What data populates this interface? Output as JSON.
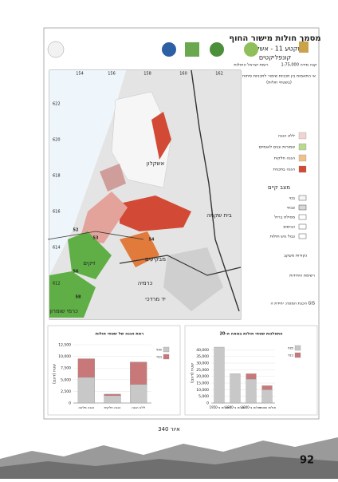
{
  "header": {
    "title": "מסמך חולות מישור החוף",
    "subtitle": "מקטע 11 - אשקלון",
    "topic": "קונפליקטים",
    "scale": "קנה מידה 1:75,000",
    "publisher": "רשות ישראל החולות"
  },
  "map": {
    "grid_x_labels": [
      "154",
      "156",
      "158",
      "160",
      "162"
    ],
    "grid_y_labels": [
      "622",
      "620",
      "618",
      "616",
      "614",
      "612"
    ],
    "places": [
      "אשקלון",
      "בית שקמה",
      "מבקיעים",
      "זיקים",
      "כרמיה",
      "יד מרדכי",
      "כרמי שומרון"
    ],
    "site_numbers": [
      "52",
      "53",
      "54",
      "56",
      "58"
    ]
  },
  "legend": {
    "title": "אי התאמות בין תכניות שימור לתכניות פיתוח",
    "note": "(בשטחי חולות)",
    "items": [
      "ללא הגנה",
      "שמורות וגנים לאומיים",
      "הגנה חלקית",
      "הגנה בתכנית"
    ],
    "existing_title": "מצב קיים",
    "existing_items": [
      "בנוי",
      "צבאי",
      "מסילת ברזל",
      "כבישים",
      "גבול גוש חולות"
    ],
    "points_title": "נקודות מעקב",
    "authors_title": "רשימת היחידות",
    "credit": "הכנת המפה: יחידת ה GIS"
  },
  "charts": [
    {
      "type": "bar",
      "title": "התפלגות שטחי חולות במאה ה-20",
      "y_label": "שטח (דונם)",
      "categories": [
        "חולות ב-1950",
        "חולות ב-1980",
        "חולות ב-2000",
        "חולות שנותרו"
      ],
      "series": [
        {
          "name": "פנוי",
          "color": "#c8c8c8",
          "values": [
            42000,
            22000,
            18000,
            10000
          ]
        },
        {
          "name": "בנוי",
          "color": "#c9787a",
          "values": [
            0,
            0,
            4000,
            3000
          ]
        }
      ],
      "ylim": [
        0,
        45000
      ],
      "yticks": [
        0,
        {
          "value": 5000,
          "label": "5,000"
        },
        {
          "value": 10000,
          "label": "10,000"
        },
        {
          "value": 15000,
          "label": "15,000"
        },
        {
          "value": 20000,
          "label": "20,000"
        },
        {
          "value": 25000,
          "label": "25,000"
        },
        {
          "value": 30000,
          "label": "30,000"
        },
        {
          "value": 35000,
          "label": "35,000"
        },
        {
          "value": 40000,
          "label": "40,000"
        }
      ]
    },
    {
      "type": "bar",
      "title": "רמת הגנה של שטחי חולות",
      "y_label": "שטח (דונם)",
      "categories": [
        "הגנה מלאה",
        "הגנה חלקית",
        "ללא הגנה"
      ],
      "series": [
        {
          "name": "פנוי",
          "color": "#c8c8c8",
          "values": [
            5500,
            1600,
            4000
          ]
        },
        {
          "name": "בנוי",
          "color": "#c9787a",
          "values": [
            4000,
            300,
            4800
          ]
        }
      ],
      "ylim": [
        0,
        12500
      ],
      "yticks": [
        0,
        {
          "value": 2500,
          "label": "2,500"
        },
        {
          "value": 5000,
          "label": "5,000"
        },
        {
          "value": 7500,
          "label": "7,500"
        },
        {
          "value": 10000,
          "label": "10,000"
        },
        {
          "value": 12500,
          "label": "12,500"
        }
      ]
    }
  ],
  "caption": "איור 340",
  "page_number": "92"
}
